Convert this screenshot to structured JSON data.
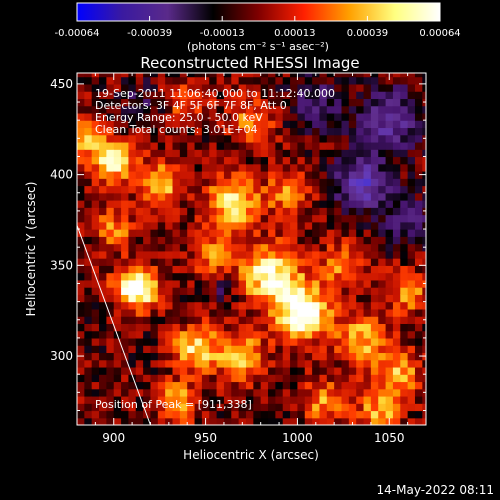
{
  "chart_data": {
    "type": "heatmap",
    "title": "Reconstructed RHESSI Image",
    "xlabel": "Heliocentric X (arcsec)",
    "ylabel": "Heliocentric Y (arcsec)",
    "xlim": [
      880,
      1070
    ],
    "ylim": [
      262,
      456
    ],
    "x_ticks": [
      900,
      950,
      1000,
      1050
    ],
    "y_ticks": [
      300,
      350,
      400,
      450
    ],
    "colorbar": {
      "ticks": [
        "-0.00064",
        "-0.00039",
        "-0.00013",
        "0.00013",
        "0.00039",
        "0.00064"
      ],
      "range": [
        -0.00064,
        0.00064
      ],
      "units": "(photons cm⁻² s⁻¹ asec⁻²)",
      "colors": [
        "#0000ff",
        "#3a1aa0",
        "#5a2a8a",
        "#000000",
        "#800000",
        "#ff2000",
        "#ffa000",
        "#ffff80",
        "#ffffff"
      ]
    },
    "annotations": [
      "19-Sep-2011 11:06:40.000 to 11:12:40.000",
      "Detectors: 3F 4F 5F 6F 7F 8F, Att 0",
      "Energy Range: 25.0 - 50.0 keV",
      "Clean    Total counts: 3.01E+04"
    ],
    "peak_label": "Position of Peak = [911,338]",
    "peak": [
      911,
      338
    ],
    "limb": [
      [
        880,
        372
      ],
      [
        920,
        262
      ]
    ],
    "sources": [
      {
        "x": 912,
        "y": 338,
        "amp": 1.0,
        "s": 8
      },
      {
        "x": 1003,
        "y": 324,
        "amp": 0.95,
        "s": 10
      },
      {
        "x": 985,
        "y": 345,
        "amp": 0.75,
        "s": 12
      },
      {
        "x": 965,
        "y": 385,
        "amp": 0.7,
        "s": 10
      },
      {
        "x": 900,
        "y": 408,
        "amp": 0.75,
        "s": 8
      },
      {
        "x": 885,
        "y": 420,
        "amp": 0.55,
        "s": 7
      },
      {
        "x": 925,
        "y": 395,
        "amp": 0.55,
        "s": 9
      },
      {
        "x": 945,
        "y": 305,
        "amp": 0.65,
        "s": 9
      },
      {
        "x": 970,
        "y": 300,
        "amp": 0.6,
        "s": 9
      },
      {
        "x": 1035,
        "y": 310,
        "amp": 0.55,
        "s": 10
      },
      {
        "x": 1055,
        "y": 290,
        "amp": 0.5,
        "s": 9
      },
      {
        "x": 1060,
        "y": 335,
        "amp": 0.45,
        "s": 8
      },
      {
        "x": 935,
        "y": 275,
        "amp": 0.5,
        "s": 8
      },
      {
        "x": 1015,
        "y": 275,
        "amp": 0.45,
        "s": 9
      },
      {
        "x": 1045,
        "y": 270,
        "amp": 0.5,
        "s": 8
      },
      {
        "x": 955,
        "y": 355,
        "amp": 0.45,
        "s": 9
      },
      {
        "x": 1025,
        "y": 350,
        "amp": 0.4,
        "s": 9
      },
      {
        "x": 995,
        "y": 390,
        "amp": 0.45,
        "s": 8
      },
      {
        "x": 975,
        "y": 430,
        "amp": 0.4,
        "s": 9
      },
      {
        "x": 900,
        "y": 370,
        "amp": 0.4,
        "s": 8
      },
      {
        "x": 940,
        "y": 440,
        "amp": 0.35,
        "s": 8
      },
      {
        "x": 1050,
        "y": 430,
        "amp": -0.55,
        "s": 12
      },
      {
        "x": 1035,
        "y": 395,
        "amp": -0.7,
        "s": 10
      },
      {
        "x": 1060,
        "y": 375,
        "amp": -0.4,
        "s": 9
      },
      {
        "x": 1010,
        "y": 440,
        "amp": -0.35,
        "s": 10
      },
      {
        "x": 960,
        "y": 340,
        "amp": -0.3,
        "s": 7
      },
      {
        "x": 915,
        "y": 440,
        "amp": -0.2,
        "s": 8
      }
    ]
  },
  "footer": {
    "timestamp": "14-May-2022 08:11"
  }
}
